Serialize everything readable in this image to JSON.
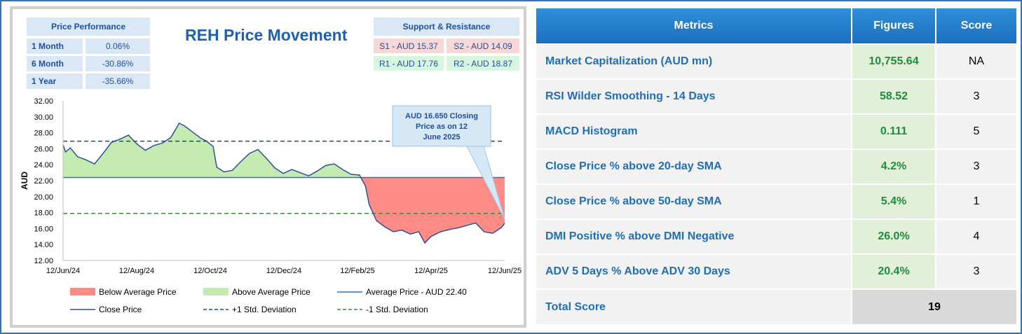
{
  "price_performance": {
    "title": "Price Performance",
    "rows": [
      {
        "label": "1 Month",
        "value": "0.06%"
      },
      {
        "label": "6 Month",
        "value": "-30.86%"
      },
      {
        "label": "1 Year",
        "value": "-35.66%"
      }
    ]
  },
  "support_resistance": {
    "title": "Support & Resistance",
    "s1": "S1 - AUD 15.37",
    "s2": "S2 - AUD 14.09",
    "r1": "R1 - AUD 17.76",
    "r2": "R2 - AUD 18.87"
  },
  "colors": {
    "below_fill": "#ff8b85",
    "above_fill": "#c6ebb0",
    "close_line": "#2e4f9a",
    "avg_line": "#2e75b6",
    "plus_std": "#1f4e79",
    "minus_std": "#3a8a3a"
  },
  "chart_data": {
    "type": "area",
    "title": "REH Price Movement",
    "ylabel": "AUD",
    "xlabel": "",
    "ylim": [
      12,
      32
    ],
    "yticks": [
      "12.00",
      "14.00",
      "16.00",
      "18.00",
      "20.00",
      "22.00",
      "24.00",
      "26.00",
      "28.00",
      "30.00",
      "32.00"
    ],
    "xtick_labels": [
      "12/Jun/24",
      "12/Aug/24",
      "12/Oct/24",
      "12/Dec/24",
      "12/Feb/25",
      "12/Apr/25",
      "12/Jun/25"
    ],
    "grid": false,
    "average_price": 22.4,
    "plus_1_std": 26.95,
    "minus_1_std": 17.9,
    "close": [
      {
        "x": "2024-06-12",
        "y": 26.5
      },
      {
        "x": "2024-06-14",
        "y": 25.6
      },
      {
        "x": "2024-06-18",
        "y": 26.1
      },
      {
        "x": "2024-06-24",
        "y": 25.0
      },
      {
        "x": "2024-07-01",
        "y": 24.6
      },
      {
        "x": "2024-07-08",
        "y": 24.1
      },
      {
        "x": "2024-07-15",
        "y": 25.4
      },
      {
        "x": "2024-07-22",
        "y": 26.8
      },
      {
        "x": "2024-07-29",
        "y": 27.2
      },
      {
        "x": "2024-08-05",
        "y": 27.7
      },
      {
        "x": "2024-08-12",
        "y": 26.6
      },
      {
        "x": "2024-08-19",
        "y": 25.8
      },
      {
        "x": "2024-08-26",
        "y": 26.4
      },
      {
        "x": "2024-09-02",
        "y": 26.7
      },
      {
        "x": "2024-09-09",
        "y": 27.4
      },
      {
        "x": "2024-09-16",
        "y": 29.2
      },
      {
        "x": "2024-09-20",
        "y": 28.9
      },
      {
        "x": "2024-09-27",
        "y": 28.1
      },
      {
        "x": "2024-10-04",
        "y": 27.3
      },
      {
        "x": "2024-10-08",
        "y": 27.0
      },
      {
        "x": "2024-10-14",
        "y": 26.3
      },
      {
        "x": "2024-10-17",
        "y": 23.7
      },
      {
        "x": "2024-10-23",
        "y": 23.1
      },
      {
        "x": "2024-10-30",
        "y": 23.3
      },
      {
        "x": "2024-11-06",
        "y": 24.4
      },
      {
        "x": "2024-11-13",
        "y": 25.4
      },
      {
        "x": "2024-11-20",
        "y": 25.9
      },
      {
        "x": "2024-11-27",
        "y": 24.8
      },
      {
        "x": "2024-12-04",
        "y": 23.6
      },
      {
        "x": "2024-12-11",
        "y": 22.9
      },
      {
        "x": "2024-12-18",
        "y": 23.4
      },
      {
        "x": "2024-12-25",
        "y": 23.0
      },
      {
        "x": "2025-01-01",
        "y": 22.6
      },
      {
        "x": "2025-01-08",
        "y": 23.2
      },
      {
        "x": "2025-01-15",
        "y": 23.9
      },
      {
        "x": "2025-01-22",
        "y": 24.1
      },
      {
        "x": "2025-01-29",
        "y": 23.4
      },
      {
        "x": "2025-02-05",
        "y": 22.8
      },
      {
        "x": "2025-02-12",
        "y": 22.7
      },
      {
        "x": "2025-02-17",
        "y": 21.3
      },
      {
        "x": "2025-02-20",
        "y": 19.0
      },
      {
        "x": "2025-02-26",
        "y": 17.0
      },
      {
        "x": "2025-03-05",
        "y": 16.2
      },
      {
        "x": "2025-03-12",
        "y": 15.6
      },
      {
        "x": "2025-03-19",
        "y": 15.8
      },
      {
        "x": "2025-03-26",
        "y": 15.3
      },
      {
        "x": "2025-04-02",
        "y": 15.6
      },
      {
        "x": "2025-04-07",
        "y": 14.2
      },
      {
        "x": "2025-04-12",
        "y": 15.0
      },
      {
        "x": "2025-04-20",
        "y": 15.6
      },
      {
        "x": "2025-04-28",
        "y": 15.9
      },
      {
        "x": "2025-05-05",
        "y": 16.1
      },
      {
        "x": "2025-05-12",
        "y": 16.4
      },
      {
        "x": "2025-05-19",
        "y": 16.7
      },
      {
        "x": "2025-05-26",
        "y": 15.6
      },
      {
        "x": "2025-06-02",
        "y": 15.4
      },
      {
        "x": "2025-06-09",
        "y": 16.1
      },
      {
        "x": "2025-06-12",
        "y": 16.65
      }
    ],
    "annotation": "AUD 16.650 Closing Price as on 12 June 2025",
    "legend": [
      {
        "label": "Below Average Price",
        "kind": "patch",
        "color": "#ff8b85"
      },
      {
        "label": "Above Average Price",
        "kind": "patch",
        "color": "#c6ebb0"
      },
      {
        "label": "Average Price - AUD 22.40",
        "kind": "line",
        "color": "#2e75b6"
      },
      {
        "label": "Close Price",
        "kind": "line",
        "color": "#2e4f9a"
      },
      {
        "label": "+1 Std. Deviation",
        "kind": "dash",
        "color": "#1f4e79"
      },
      {
        "label": "-1 Std. Deviation",
        "kind": "dash",
        "color": "#3a8a3a"
      }
    ],
    "legend_position": "bottom"
  },
  "metrics_table": {
    "headers": [
      "Metrics",
      "Figures",
      "Score"
    ],
    "rows": [
      {
        "metric": "Market Capitalization (AUD mn)",
        "figure": "10,755.64",
        "score": "NA"
      },
      {
        "metric": "RSI Wilder Smoothing - 14 Days",
        "figure": "58.52",
        "score": "3"
      },
      {
        "metric": "MACD Histogram",
        "figure": "0.111",
        "score": "5"
      },
      {
        "metric": "Close Price % above 20-day SMA",
        "figure": "4.2%",
        "score": "3"
      },
      {
        "metric": "Close Price % above 50-day SMA",
        "figure": "5.4%",
        "score": "1"
      },
      {
        "metric": "DMI Positive % above DMI Negative",
        "figure": "26.0%",
        "score": "4"
      },
      {
        "metric": "ADV 5 Days % Above ADV 30 Days",
        "figure": "20.4%",
        "score": "3"
      }
    ],
    "total_label": "Total Score",
    "total_value": "19"
  }
}
